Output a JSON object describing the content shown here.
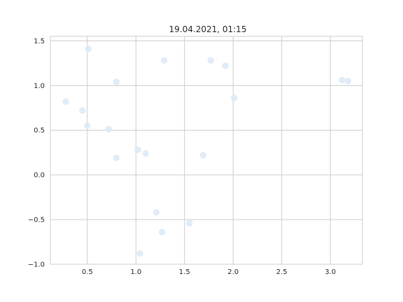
{
  "chart_data": {
    "type": "scatter",
    "title": "19.04.2021, 01:15",
    "xlabel": "",
    "ylabel": "",
    "xlim": [
      0.12,
      3.33
    ],
    "ylim": [
      -1.0,
      1.55
    ],
    "grid": true,
    "marker_color": "#dbe9f7",
    "x_ticks": [
      "0.5",
      "1.0",
      "1.5",
      "2.0",
      "2.5",
      "3.0"
    ],
    "y_ticks": [
      "−1.0",
      "−0.5",
      "0.0",
      "0.5",
      "1.0",
      "1.5"
    ],
    "points": [
      {
        "x": 0.28,
        "y": 0.82
      },
      {
        "x": 0.45,
        "y": 0.72
      },
      {
        "x": 0.5,
        "y": 0.55
      },
      {
        "x": 0.51,
        "y": 1.41
      },
      {
        "x": 0.72,
        "y": 0.51
      },
      {
        "x": 0.8,
        "y": 0.19
      },
      {
        "x": 0.8,
        "y": 1.04
      },
      {
        "x": 1.02,
        "y": 0.28
      },
      {
        "x": 1.04,
        "y": -0.88
      },
      {
        "x": 1.1,
        "y": 0.24
      },
      {
        "x": 1.21,
        "y": -0.42
      },
      {
        "x": 1.27,
        "y": -0.64
      },
      {
        "x": 1.29,
        "y": 1.28
      },
      {
        "x": 1.55,
        "y": -0.54
      },
      {
        "x": 1.69,
        "y": 0.22
      },
      {
        "x": 1.77,
        "y": 1.28
      },
      {
        "x": 1.92,
        "y": 1.22
      },
      {
        "x": 2.01,
        "y": 0.86
      },
      {
        "x": 3.12,
        "y": 1.06
      },
      {
        "x": 3.18,
        "y": 1.05
      }
    ]
  }
}
